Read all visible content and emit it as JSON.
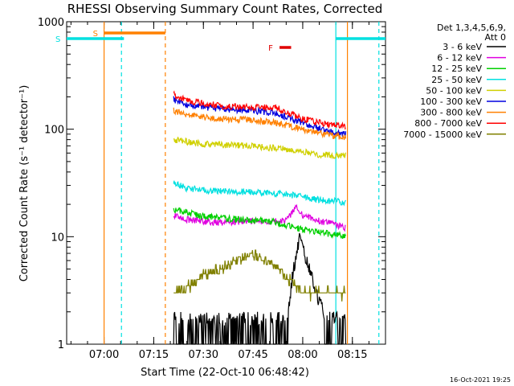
{
  "chart_data": {
    "type": "line",
    "title": "RHESSI Observing Summary Count Rates, Corrected",
    "xlabel": "Start Time (22-Oct-10 06:48:42)",
    "ylabel": "Corrected Count Rate (s⁻¹ detector⁻¹)",
    "y_scale": "log",
    "ylim": [
      1,
      1000
    ],
    "xlim": [
      "06:48:42",
      "08:25:00"
    ],
    "x_ticks": [
      "07:00",
      "07:15",
      "07:30",
      "07:45",
      "08:00",
      "08:15"
    ],
    "y_ticks": [
      "1",
      "10",
      "100",
      "1000"
    ],
    "legend_header": [
      "Det 1,3,4,5,6,9,",
      "Att 0"
    ],
    "legend_position": "right",
    "timestamp": "16-Oct-2021 19:25",
    "flag_bars": [
      {
        "label": "S",
        "start": "06:48:42",
        "end": "07:06:00",
        "color": "#00e0e0",
        "level": "low"
      },
      {
        "label": "S",
        "start": "07:00:00",
        "end": "07:18:30",
        "color": "#ff8000",
        "level": "high"
      },
      {
        "label": "F",
        "start": "07:53:00",
        "end": "07:56:30",
        "color": "#e00000",
        "level": "mid"
      },
      {
        "label": "",
        "start": "08:10:00",
        "end": "08:25:00",
        "color": "#00e0e0",
        "level": "low"
      }
    ],
    "vertical_lines": [
      {
        "t": "07:00:00",
        "color": "#ff8000",
        "style": "solid"
      },
      {
        "t": "07:05:15",
        "color": "#00e0e0",
        "style": "dashed"
      },
      {
        "t": "07:18:30",
        "color": "#ff8000",
        "style": "dashed"
      },
      {
        "t": "08:10:00",
        "color": "#00e0e0",
        "style": "solid"
      },
      {
        "t": "08:13:30",
        "color": "#ff8000",
        "style": "solid"
      },
      {
        "t": "08:23:00",
        "color": "#00e0e0",
        "style": "dashed"
      }
    ],
    "series": [
      {
        "name": "3 - 6 keV",
        "color": "#000000",
        "x": [
          "07:21:00",
          "07:25:00",
          "07:30:00",
          "07:40:00",
          "07:50:00",
          "07:55:00",
          "07:57:00",
          "07:59:00",
          "08:02:00",
          "08:05:00",
          "08:08:00",
          "08:13:00"
        ],
        "y": [
          1.6,
          1.3,
          1.3,
          1.2,
          1.3,
          1.5,
          4.5,
          10,
          5,
          2.5,
          1.6,
          1.2
        ]
      },
      {
        "name": "6 - 12 keV",
        "color": "#e000e0",
        "x": [
          "07:21:00",
          "07:25:00",
          "07:35:00",
          "07:45:00",
          "07:55:00",
          "07:58:00",
          "08:00:00",
          "08:05:00",
          "08:10:00",
          "08:13:00"
        ],
        "y": [
          16,
          14.5,
          13.5,
          14,
          14,
          19,
          16,
          14,
          13,
          12
        ]
      },
      {
        "name": "12 - 25 keV",
        "color": "#00d000",
        "x": [
          "07:21:00",
          "07:30:00",
          "07:40:00",
          "07:50:00",
          "07:58:00",
          "08:05:00",
          "08:10:00",
          "08:13:00"
        ],
        "y": [
          18,
          15.5,
          14.5,
          14,
          12,
          11,
          10.5,
          10
        ]
      },
      {
        "name": "25 - 50 keV",
        "color": "#00e0e0",
        "x": [
          "07:21:00",
          "07:25:00",
          "07:35:00",
          "07:45:00",
          "07:55:00",
          "08:05:00",
          "08:13:00"
        ],
        "y": [
          32,
          28,
          26.5,
          26,
          25,
          22,
          21
        ]
      },
      {
        "name": "50 - 100 keV",
        "color": "#d0d000",
        "x": [
          "07:21:00",
          "07:30:00",
          "07:45:00",
          "07:55:00",
          "08:05:00",
          "08:13:00"
        ],
        "y": [
          80,
          73,
          70,
          65,
          58,
          57
        ]
      },
      {
        "name": "100 - 300 keV",
        "color": "#0000e0",
        "x": [
          "07:21:00",
          "07:25:00",
          "07:35:00",
          "07:45:00",
          "07:52:00",
          "08:00:00",
          "08:08:00",
          "08:13:00"
        ],
        "y": [
          190,
          170,
          155,
          150,
          140,
          115,
          95,
          90
        ]
      },
      {
        "name": "300 - 800 keV",
        "color": "#ff8000",
        "x": [
          "07:21:00",
          "07:25:00",
          "07:35:00",
          "07:45:00",
          "07:52:00",
          "08:00:00",
          "08:08:00",
          "08:13:00"
        ],
        "y": [
          150,
          135,
          125,
          122,
          115,
          100,
          88,
          85
        ]
      },
      {
        "name": "800 - 7000 keV",
        "color": "#ff0000",
        "x": [
          "07:21:00",
          "07:25:00",
          "07:35:00",
          "07:45:00",
          "07:52:00",
          "08:00:00",
          "08:08:00",
          "08:13:00"
        ],
        "y": [
          210,
          185,
          165,
          160,
          160,
          125,
          110,
          108
        ]
      },
      {
        "name": "7000 - 15000 keV",
        "color": "#808000",
        "x": [
          "07:21:00",
          "07:26:00",
          "07:30:00",
          "07:35:00",
          "07:40:00",
          "07:44:00",
          "07:47:00",
          "07:52:00",
          "07:56:00",
          "08:00:00",
          "08:05:00",
          "08:13:00"
        ],
        "y": [
          3,
          3.5,
          4.5,
          5,
          6,
          7,
          6.5,
          5,
          4,
          3,
          3,
          3
        ]
      }
    ]
  }
}
